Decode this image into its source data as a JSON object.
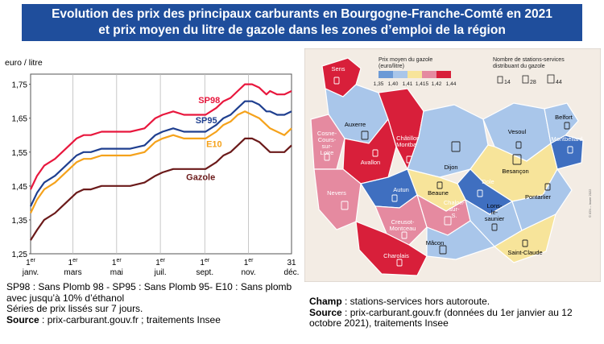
{
  "header": {
    "title_line1": "Evolution des prix des principaux carburants en Bourgogne-Franche-Comté en 2021",
    "title_line2": "et prix moyen du litre de gazole dans les zones d’emploi de la région"
  },
  "chart_data": {
    "type": "line",
    "ylabel": "euro / litre",
    "ylim": [
      1.25,
      1.78
    ],
    "yticks": [
      "1,25",
      "1,35",
      "1,45",
      "1,55",
      "1,65",
      "1,75"
    ],
    "ytick_values": [
      1.25,
      1.35,
      1.45,
      1.55,
      1.65,
      1.75
    ],
    "xticks": [
      {
        "sup": "er",
        "num": "1",
        "month": "janv.",
        "day": 1
      },
      {
        "sup": "er",
        "num": "1",
        "month": "mars",
        "day": 60
      },
      {
        "sup": "er",
        "num": "1",
        "month": "mai",
        "day": 121
      },
      {
        "sup": "er",
        "num": "1",
        "month": "juil.",
        "day": 182
      },
      {
        "sup": "er",
        "num": "1",
        "month": "sept.",
        "day": 244
      },
      {
        "sup": "er",
        "num": "1",
        "month": "nov.",
        "day": 305
      },
      {
        "sup": "",
        "num": "31",
        "month": "déc.",
        "day": 365
      }
    ],
    "xlim_days": [
      1,
      365
    ],
    "grid": "vertical",
    "series": [
      {
        "name": "SP98",
        "color": "#e8173d",
        "x": [
          1,
          10,
          20,
          35,
          45,
          55,
          65,
          75,
          85,
          100,
          120,
          140,
          160,
          175,
          185,
          200,
          215,
          230,
          245,
          260,
          270,
          280,
          290,
          300,
          310,
          320,
          330,
          335,
          345,
          355,
          365
        ],
        "y": [
          1.44,
          1.48,
          1.51,
          1.53,
          1.55,
          1.57,
          1.59,
          1.6,
          1.6,
          1.61,
          1.61,
          1.61,
          1.62,
          1.65,
          1.66,
          1.67,
          1.66,
          1.66,
          1.66,
          1.68,
          1.7,
          1.71,
          1.73,
          1.75,
          1.75,
          1.74,
          1.72,
          1.73,
          1.72,
          1.72,
          1.73
        ]
      },
      {
        "name": "SP95",
        "color": "#1f3f8f",
        "x": [
          1,
          10,
          20,
          35,
          45,
          55,
          65,
          75,
          85,
          100,
          120,
          140,
          160,
          175,
          185,
          200,
          215,
          230,
          245,
          260,
          270,
          280,
          290,
          300,
          310,
          320,
          330,
          335,
          345,
          355,
          365
        ],
        "y": [
          1.39,
          1.43,
          1.46,
          1.48,
          1.5,
          1.52,
          1.54,
          1.55,
          1.55,
          1.56,
          1.56,
          1.56,
          1.57,
          1.6,
          1.61,
          1.62,
          1.61,
          1.61,
          1.61,
          1.63,
          1.65,
          1.66,
          1.68,
          1.7,
          1.7,
          1.69,
          1.67,
          1.67,
          1.66,
          1.66,
          1.67
        ]
      },
      {
        "name": "E10",
        "color": "#f5a21b",
        "x": [
          1,
          10,
          20,
          35,
          45,
          55,
          65,
          75,
          85,
          100,
          120,
          140,
          160,
          175,
          185,
          200,
          215,
          230,
          245,
          260,
          270,
          280,
          290,
          300,
          310,
          320,
          330,
          335,
          345,
          355,
          365
        ],
        "y": [
          1.37,
          1.41,
          1.44,
          1.46,
          1.48,
          1.5,
          1.52,
          1.53,
          1.53,
          1.54,
          1.54,
          1.54,
          1.55,
          1.58,
          1.59,
          1.6,
          1.59,
          1.59,
          1.59,
          1.61,
          1.63,
          1.64,
          1.66,
          1.67,
          1.66,
          1.65,
          1.63,
          1.62,
          1.61,
          1.6,
          1.62
        ]
      },
      {
        "name": "Gazole",
        "color": "#6b1a1a",
        "x": [
          1,
          10,
          20,
          35,
          45,
          55,
          65,
          75,
          85,
          100,
          120,
          140,
          160,
          175,
          185,
          200,
          215,
          230,
          245,
          260,
          270,
          280,
          290,
          300,
          310,
          320,
          330,
          335,
          345,
          355,
          365
        ],
        "y": [
          1.29,
          1.32,
          1.35,
          1.37,
          1.39,
          1.41,
          1.43,
          1.44,
          1.44,
          1.45,
          1.45,
          1.45,
          1.46,
          1.48,
          1.49,
          1.5,
          1.5,
          1.5,
          1.5,
          1.52,
          1.54,
          1.55,
          1.57,
          1.59,
          1.59,
          1.58,
          1.56,
          1.55,
          1.55,
          1.55,
          1.57
        ]
      }
    ]
  },
  "map": {
    "legend_price_title": "Prix moyen du gazole (euro/litre)",
    "legend_price_ticks": [
      "1,35",
      "1,40",
      "1,41",
      "1,415",
      "1,42",
      "1,44"
    ],
    "legend_price_colors": [
      "#6c9ad6",
      "#a9c6ea",
      "#f7e49a",
      "#e58aa0",
      "#d81f3a"
    ],
    "legend_stations_title": "Nombre de stations-services distribuant du gazole",
    "legend_stations_values": [
      "14",
      "28",
      "44"
    ],
    "credit": "© IGN – Insee 2022",
    "zones": [
      {
        "name": "Sens",
        "color": "#d81f3a",
        "text_color": "#ffffff"
      },
      {
        "name": "Auxerre",
        "color": "#a9c6ea",
        "text_color": "#000000"
      },
      {
        "name": "Cosne-Cours-sur-Loire",
        "color": "#e58aa0",
        "text_color": "#ffffff"
      },
      {
        "name": "Avallon",
        "color": "#d81f3a",
        "text_color": "#ffffff"
      },
      {
        "name": "Châtillon-Montbard",
        "color": "#d81f3a",
        "text_color": "#ffffff"
      },
      {
        "name": "Nevers",
        "color": "#e58aa0",
        "text_color": "#ffffff"
      },
      {
        "name": "Dijon",
        "color": "#a9c6ea",
        "text_color": "#000000"
      },
      {
        "name": "Vesoul",
        "color": "#a9c6ea",
        "text_color": "#000000"
      },
      {
        "name": "Belfort",
        "color": "#a9c6ea",
        "text_color": "#000000"
      },
      {
        "name": "Montbéliard",
        "color": "#3f6fc0",
        "text_color": "#ffffff"
      },
      {
        "name": "Besançon",
        "color": "#f7e49a",
        "text_color": "#000000"
      },
      {
        "name": "Dole",
        "color": "#3f6fc0",
        "text_color": "#ffffff"
      },
      {
        "name": "Autun",
        "color": "#3f6fc0",
        "text_color": "#ffffff"
      },
      {
        "name": "Beaune",
        "color": "#f7e49a",
        "text_color": "#000000"
      },
      {
        "name": "Chalon-sur-S.",
        "color": "#e58aa0",
        "text_color": "#ffffff"
      },
      {
        "name": "Lons-le-saunier",
        "color": "#a9c6ea",
        "text_color": "#000000"
      },
      {
        "name": "Pontarlier",
        "color": "#a9c6ea",
        "text_color": "#000000"
      },
      {
        "name": "Creusot-Montceau",
        "color": "#e58aa0",
        "text_color": "#ffffff"
      },
      {
        "name": "Mâcon",
        "color": "#a9c6ea",
        "text_color": "#000000"
      },
      {
        "name": "Saint-Claude",
        "color": "#f7e49a",
        "text_color": "#000000"
      },
      {
        "name": "Charolais",
        "color": "#d81f3a",
        "text_color": "#ffffff"
      }
    ]
  },
  "notes": {
    "left_line1": "SP98 : Sans Plomb 98 - SP95 : Sans Plomb 95- E10 : Sans plomb avec jusqu’à 10% d’éthanol",
    "left_line2": "Séries de prix lissés sur 7 jours.",
    "left_source_label": "Source",
    "left_source_text": " : prix-carburant.gouv.fr ; traitements Insee",
    "right_champ_label": "Champ",
    "right_champ_text": " : stations-services hors autoroute.",
    "right_source_label": "Source",
    "right_source_text": " : prix-carburant.gouv.fr (données du 1er janvier au 12 octobre 2021), traitements Insee"
  }
}
